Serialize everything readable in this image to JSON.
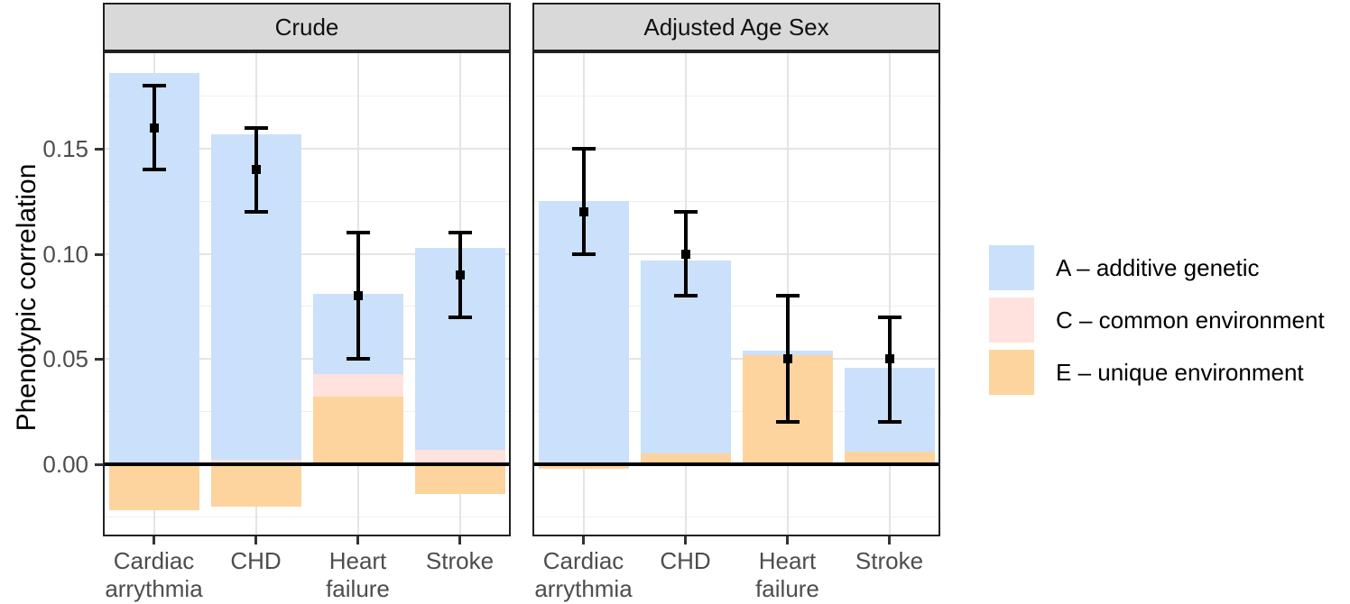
{
  "chart_data": {
    "type": "bar",
    "stacked": true,
    "ylabel": "Phenotypic correlation",
    "ylim": [
      -0.0345,
      0.1962
    ],
    "yticks": [
      0.0,
      0.05,
      0.1,
      0.15
    ],
    "ytick_labels": [
      "0.00",
      "0.05",
      "0.10",
      "0.15"
    ],
    "ygrid_minor": [
      -0.025,
      0.025,
      0.075,
      0.125,
      0.175
    ],
    "grid": "on",
    "categories": [
      "Cardiac arrythmia",
      "CHD",
      "Heart failure",
      "Stroke"
    ],
    "category_label_lines": [
      [
        "Cardiac",
        "arrythmia"
      ],
      [
        "CHD"
      ],
      [
        "Heart",
        "failure"
      ],
      [
        "Stroke"
      ]
    ],
    "stack_order_bottom_to_top": [
      "E",
      "C",
      "A"
    ],
    "series_colors": {
      "A": "#CBE0FA",
      "C": "#FFE2DE",
      "E": "#FDD49D"
    },
    "facets": [
      {
        "label": "Crude",
        "bars": [
          {
            "category": "Cardiac arrythmia",
            "A": 0.186,
            "C": 0.0,
            "E": -0.022,
            "point": 0.16,
            "ci": [
              0.14,
              0.18
            ]
          },
          {
            "category": "CHD",
            "A": 0.155,
            "C": 0.002,
            "E": -0.02,
            "point": 0.14,
            "ci": [
              0.12,
              0.16
            ]
          },
          {
            "category": "Heart failure",
            "A": 0.038,
            "C": 0.011,
            "E": 0.032,
            "point": 0.08,
            "ci": [
              0.05,
              0.11
            ]
          },
          {
            "category": "Stroke",
            "A": 0.096,
            "C": 0.007,
            "E": -0.014,
            "point": 0.09,
            "ci": [
              0.07,
              0.11
            ]
          }
        ]
      },
      {
        "label": "Adjusted Age Sex",
        "bars": [
          {
            "category": "Cardiac arrythmia",
            "A": 0.125,
            "C": 0.0,
            "E": -0.002,
            "point": 0.12,
            "ci": [
              0.1,
              0.15
            ]
          },
          {
            "category": "CHD",
            "A": 0.092,
            "C": 0.0,
            "E": 0.005,
            "point": 0.1,
            "ci": [
              0.08,
              0.12
            ]
          },
          {
            "category": "Heart failure",
            "A": 0.002,
            "C": 0.0,
            "E": 0.052,
            "point": 0.05,
            "ci": [
              0.02,
              0.08
            ]
          },
          {
            "category": "Stroke",
            "A": 0.04,
            "C": 0.0,
            "E": 0.006,
            "point": 0.05,
            "ci": [
              0.02,
              0.07
            ]
          }
        ]
      }
    ],
    "error_bar_color": "#000000",
    "zero_line_color": "#000000",
    "strip_background": "#D9D9D9",
    "legend": {
      "position": "right",
      "items": [
        {
          "key": "A",
          "label": "A – additive genetic",
          "color": "#CBE0FA"
        },
        {
          "key": "C",
          "label": "C – common environment",
          "color": "#FFE2DE"
        },
        {
          "key": "E",
          "label": "E – unique environment",
          "color": "#FDD49D"
        }
      ]
    }
  }
}
